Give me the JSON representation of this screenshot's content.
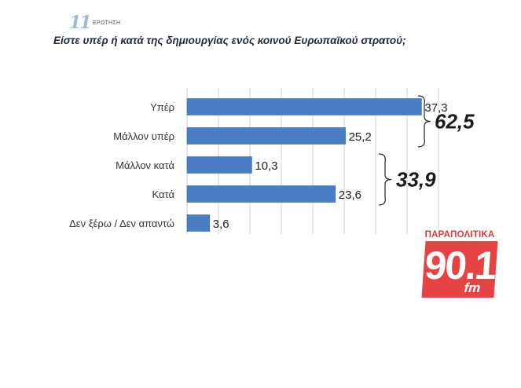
{
  "header": {
    "question_number": "11",
    "question_word": "ΕΡΩΤΗΣΗ",
    "question_text": "Είστε υπέρ ή κατά της δημιουργίας ενός κοινού Ευρωπαϊκού στρατού;"
  },
  "chart_data": {
    "type": "bar",
    "orientation": "horizontal",
    "title": "",
    "xlabel": "",
    "ylabel": "",
    "categories": [
      "Υπέρ",
      "Μάλλον υπέρ",
      "Μάλλον κατά",
      "Κατά",
      "Δεν ξέρω / Δεν απαντώ"
    ],
    "values": [
      37.3,
      25.2,
      10.3,
      23.6,
      3.6
    ],
    "value_labels": [
      "37,3",
      "25,2",
      "10,3",
      "23,6",
      "3,6"
    ],
    "xlim": [
      0,
      40
    ],
    "grid": true,
    "bar_color": "#4a7ec4",
    "groups": [
      {
        "total_label": "62,5",
        "members": [
          0,
          1
        ]
      },
      {
        "total_label": "33,9",
        "members": [
          2,
          3
        ]
      }
    ]
  },
  "logo": {
    "top_text": "ΠΑΡΑΠΟΛΙΤΙΚΑ",
    "number": "90.1",
    "suffix": "fm",
    "color": "#e64444"
  }
}
